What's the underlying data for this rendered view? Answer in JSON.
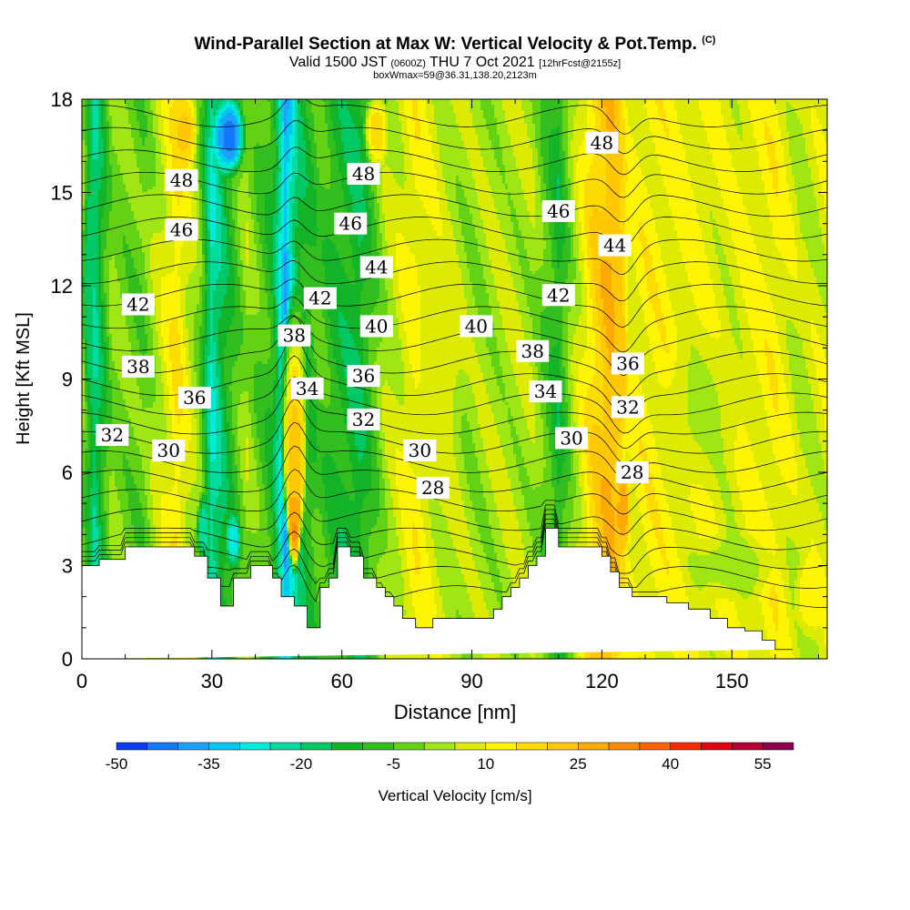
{
  "title": {
    "main": "Wind-Parallel Section at Max W: Vertical Velocity & Pot.Temp.",
    "copyright": "(C)",
    "valid_prefix": "Valid 1500 JST",
    "valid_utc": "(0600Z)",
    "valid_date": "THU 7 Oct 2021",
    "forecast": "[12hrFcst@2155z]",
    "boxline": "boxWmax=59@36.31,138.20,2123m"
  },
  "chart_data": {
    "type": "heatmap",
    "xlabel": "Distance [nm]",
    "ylabel": "Height [Kft MSL]",
    "xlim": [
      0,
      172
    ],
    "ylim": [
      0,
      18
    ],
    "x_ticks": [
      0,
      30,
      60,
      90,
      120,
      150
    ],
    "y_ticks": [
      0,
      3,
      6,
      9,
      12,
      15,
      18
    ],
    "colorbar": {
      "label": "Vertical Velocity [cm/s]",
      "tick_labels": [
        "-50",
        "-35",
        "-20",
        "-5",
        "10",
        "25",
        "40",
        "55"
      ],
      "tick_values": [
        -50,
        -35,
        -20,
        -5,
        10,
        25,
        40,
        55
      ],
      "levels": [
        -50,
        -45,
        -40,
        -35,
        -30,
        -25,
        -20,
        -15,
        -10,
        -5,
        0,
        5,
        10,
        15,
        20,
        25,
        30,
        35,
        40,
        45,
        50,
        55,
        60
      ],
      "colors": [
        "#0000f0",
        "#0a3cf5",
        "#1478fa",
        "#1ea0ff",
        "#00c8f0",
        "#00ebdc",
        "#00dca0",
        "#00c864",
        "#14b428",
        "#32be1e",
        "#64d214",
        "#a0e614",
        "#dceb00",
        "#fff500",
        "#ffdc00",
        "#ffc800",
        "#ffaa00",
        "#ff8c00",
        "#ff6400",
        "#ff2800",
        "#e60014",
        "#b40032",
        "#8c0050",
        "#5a0078"
      ]
    },
    "terrain": {
      "x": [
        0,
        4,
        4,
        10,
        10,
        26,
        26,
        29,
        29,
        32,
        32,
        35,
        35,
        39,
        39,
        44,
        44,
        46,
        46,
        49,
        49,
        52,
        52,
        55,
        55,
        57,
        57,
        59,
        59,
        62,
        62,
        65,
        65,
        68,
        68,
        70,
        70,
        72,
        72,
        74,
        74,
        77,
        77,
        81,
        81,
        95,
        95,
        97,
        97,
        99,
        99,
        101,
        101,
        103,
        103,
        105,
        105,
        107,
        107,
        110,
        110,
        120,
        120,
        122,
        122,
        124,
        124,
        127,
        127,
        135,
        135,
        140,
        140,
        145,
        145,
        149,
        149,
        153,
        153,
        157,
        157,
        160,
        160,
        164,
        164,
        172
      ],
      "height_kft": [
        3,
        3,
        3.2,
        3.2,
        3.6,
        3.6,
        3.3,
        3.3,
        2.6,
        2.6,
        1.7,
        1.7,
        2.6,
        2.6,
        3,
        3,
        2.6,
        2.6,
        2,
        2,
        1.7,
        1.7,
        1,
        1,
        2.3,
        2.3,
        2.6,
        2.6,
        3.6,
        3.6,
        3.3,
        3.3,
        2.6,
        2.6,
        2.3,
        2.3,
        2,
        2,
        1.7,
        1.7,
        1.3,
        1.3,
        1,
        1,
        1.3,
        1.3,
        1.6,
        1.6,
        2,
        2,
        2.3,
        2.3,
        2.6,
        2.6,
        3,
        3,
        3.3,
        3.3,
        4.2,
        4.2,
        3.6,
        3.6,
        3.3,
        3.3,
        2.8,
        2.8,
        2.3,
        2.3,
        2,
        2,
        1.8,
        1.8,
        1.6,
        1.6,
        1.3,
        1.3,
        1,
        1,
        0.9,
        0.9,
        0.6,
        0.6,
        0.3,
        0.3
      ]
    },
    "columns": [
      {
        "x": 0,
        "w": 0
      },
      {
        "x": 3,
        "w": -20
      },
      {
        "x": 7,
        "w": 0
      },
      {
        "x": 14,
        "w": -3
      },
      {
        "x": 22,
        "w": 15
      },
      {
        "x": 27,
        "w": 0
      },
      {
        "x": 30,
        "w": -25
      },
      {
        "x": 34,
        "w": -10
      },
      {
        "x": 38,
        "w": 2
      },
      {
        "x": 44,
        "w": -10
      },
      {
        "x": 47,
        "w": -35
      },
      {
        "x": 50,
        "w": -15
      },
      {
        "x": 55,
        "w": -5
      },
      {
        "x": 58,
        "w": -10
      },
      {
        "x": 64,
        "w": -15
      },
      {
        "x": 70,
        "w": 3
      },
      {
        "x": 77,
        "w": 12
      },
      {
        "x": 84,
        "w": 5
      },
      {
        "x": 90,
        "w": 2
      },
      {
        "x": 98,
        "w": 4
      },
      {
        "x": 104,
        "w": 3
      },
      {
        "x": 110,
        "w": -12
      },
      {
        "x": 114,
        "w": 5
      },
      {
        "x": 118,
        "w": 18
      },
      {
        "x": 122,
        "w": 25
      },
      {
        "x": 126,
        "w": 10
      },
      {
        "x": 131,
        "w": 12
      },
      {
        "x": 140,
        "w": 10
      },
      {
        "x": 150,
        "w": 8
      },
      {
        "x": 160,
        "w": 12
      },
      {
        "x": 166,
        "w": 5
      },
      {
        "x": 172,
        "w": 8
      }
    ],
    "features": [
      {
        "x": 49,
        "y": 4.9,
        "rx": 1.7,
        "ry": 2.3,
        "w": 55
      },
      {
        "x": 49,
        "y": 6.4,
        "rx": 2.6,
        "ry": 3.4,
        "w": 35
      },
      {
        "x": 49,
        "y": 7.6,
        "rx": 3.4,
        "ry": 4.6,
        "w": 20
      },
      {
        "x": 125,
        "y": 4.8,
        "rx": 2.0,
        "ry": 1.6,
        "w": 30
      },
      {
        "x": 123,
        "y": 11,
        "rx": 3.2,
        "ry": 6,
        "w": 25
      },
      {
        "x": 34,
        "y": 16.8,
        "rx": 4.0,
        "ry": 1.4,
        "w": -45
      },
      {
        "x": 35,
        "y": 3.8,
        "rx": 2.0,
        "ry": 1.0,
        "w": -30
      },
      {
        "x": 28,
        "y": 4.2,
        "rx": 1.6,
        "ry": 1.2,
        "w": -25
      },
      {
        "x": 2,
        "y": 12,
        "rx": 2.0,
        "ry": 5,
        "w": -20
      },
      {
        "x": 24,
        "y": 17,
        "rx": 3.0,
        "ry": 1.5,
        "w": 22
      },
      {
        "x": 68,
        "y": 17,
        "rx": 3.0,
        "ry": 1.3,
        "w": 20
      },
      {
        "x": 82,
        "y": 9.5,
        "rx": 7.0,
        "ry": 3.5,
        "w": 8
      },
      {
        "x": 150,
        "y": 3.0,
        "rx": 12,
        "ry": 1.2,
        "w": 2
      },
      {
        "x": 143,
        "y": 8,
        "rx": 10,
        "ry": 3,
        "w": 4
      },
      {
        "x": 168,
        "y": 2,
        "rx": 4,
        "ry": 1.5,
        "w": 15
      }
    ],
    "contour_levels": [
      27,
      28,
      29,
      30,
      31,
      32,
      33,
      34,
      35,
      36,
      37,
      38,
      39,
      40,
      41,
      42,
      43,
      44,
      45,
      46,
      47,
      48,
      49,
      50
    ],
    "contour_labels": [
      {
        "value": 48,
        "x": 23,
        "y": 15.4
      },
      {
        "value": 46,
        "x": 23,
        "y": 13.8
      },
      {
        "value": 42,
        "x": 13,
        "y": 11.4
      },
      {
        "value": 38,
        "x": 13,
        "y": 9.4
      },
      {
        "value": 36,
        "x": 26,
        "y": 8.4
      },
      {
        "value": 32,
        "x": 7,
        "y": 7.2
      },
      {
        "value": 30,
        "x": 20,
        "y": 6.7
      },
      {
        "value": 48,
        "x": 65,
        "y": 15.6
      },
      {
        "value": 46,
        "x": 62,
        "y": 14.0
      },
      {
        "value": 44,
        "x": 68,
        "y": 12.6
      },
      {
        "value": 42,
        "x": 55,
        "y": 11.6
      },
      {
        "value": 40,
        "x": 68,
        "y": 10.7
      },
      {
        "value": 38,
        "x": 49,
        "y": 10.4
      },
      {
        "value": 36,
        "x": 65,
        "y": 9.1
      },
      {
        "value": 34,
        "x": 52,
        "y": 8.7
      },
      {
        "value": 32,
        "x": 65,
        "y": 7.7
      },
      {
        "value": 30,
        "x": 78,
        "y": 6.7
      },
      {
        "value": 28,
        "x": 81,
        "y": 5.5
      },
      {
        "value": 40,
        "x": 91,
        "y": 10.7
      },
      {
        "value": 38,
        "x": 104,
        "y": 9.9
      },
      {
        "value": 34,
        "x": 107,
        "y": 8.6
      },
      {
        "value": 30,
        "x": 113,
        "y": 7.1
      },
      {
        "value": 28,
        "x": 127,
        "y": 6.0
      },
      {
        "value": 48,
        "x": 120,
        "y": 16.6
      },
      {
        "value": 46,
        "x": 110,
        "y": 14.4
      },
      {
        "value": 44,
        "x": 123,
        "y": 13.3
      },
      {
        "value": 42,
        "x": 110,
        "y": 11.7
      },
      {
        "value": 36,
        "x": 126,
        "y": 9.5
      },
      {
        "value": 32,
        "x": 126,
        "y": 8.1
      }
    ]
  }
}
